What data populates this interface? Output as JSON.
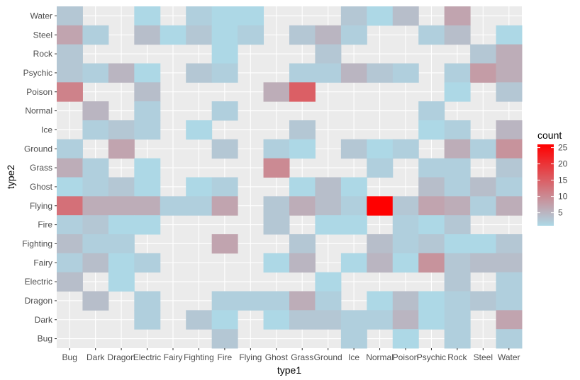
{
  "chart_data": {
    "type": "heatmap",
    "xlabel": "type1",
    "ylabel": "type2",
    "x_categories": [
      "Bug",
      "Dark",
      "Dragon",
      "Electric",
      "Fairy",
      "Fighting",
      "Fire",
      "Flying",
      "Ghost",
      "Grass",
      "Ground",
      "Ice",
      "Normal",
      "Poison",
      "Psychic",
      "Rock",
      "Steel",
      "Water"
    ],
    "y_categories": [
      "Bug",
      "Dark",
      "Dragon",
      "Electric",
      "Fairy",
      "Fighting",
      "Fire",
      "Flying",
      "Ghost",
      "Grass",
      "Ground",
      "Ice",
      "Normal",
      "Poison",
      "Psychic",
      "Rock",
      "Steel",
      "Water"
    ],
    "color_scale": {
      "low": "#add8e6",
      "high": "#ff0000",
      "min": 1,
      "max": 26
    },
    "legend": {
      "title": "count",
      "position": "right",
      "breaks": [
        5,
        10,
        15,
        20,
        25
      ]
    },
    "grid": true,
    "panel_background": "#ebebeb",
    "cells": [
      {
        "x": "Bug",
        "y": "Water",
        "count": 3
      },
      {
        "x": "Electric",
        "y": "Water",
        "count": 1
      },
      {
        "x": "Fighting",
        "y": "Water",
        "count": 2
      },
      {
        "x": "Fire",
        "y": "Water",
        "count": 1
      },
      {
        "x": "Flying",
        "y": "Water",
        "count": 1
      },
      {
        "x": "Ice",
        "y": "Water",
        "count": 3
      },
      {
        "x": "Normal",
        "y": "Water",
        "count": 1
      },
      {
        "x": "Poison",
        "y": "Water",
        "count": 4
      },
      {
        "x": "Rock",
        "y": "Water",
        "count": 7
      },
      {
        "x": "Bug",
        "y": "Steel",
        "count": 7
      },
      {
        "x": "Dark",
        "y": "Steel",
        "count": 2
      },
      {
        "x": "Electric",
        "y": "Steel",
        "count": 4
      },
      {
        "x": "Fairy",
        "y": "Steel",
        "count": 1
      },
      {
        "x": "Fighting",
        "y": "Steel",
        "count": 3
      },
      {
        "x": "Fire",
        "y": "Steel",
        "count": 1
      },
      {
        "x": "Flying",
        "y": "Steel",
        "count": 2
      },
      {
        "x": "Grass",
        "y": "Steel",
        "count": 3
      },
      {
        "x": "Ground",
        "y": "Steel",
        "count": 5
      },
      {
        "x": "Ice",
        "y": "Steel",
        "count": 2
      },
      {
        "x": "Psychic",
        "y": "Steel",
        "count": 2
      },
      {
        "x": "Rock",
        "y": "Steel",
        "count": 4
      },
      {
        "x": "Water",
        "y": "Steel",
        "count": 1
      },
      {
        "x": "Bug",
        "y": "Rock",
        "count": 3
      },
      {
        "x": "Fire",
        "y": "Rock",
        "count": 1
      },
      {
        "x": "Ground",
        "y": "Rock",
        "count": 3
      },
      {
        "x": "Steel",
        "y": "Rock",
        "count": 3
      },
      {
        "x": "Water",
        "y": "Rock",
        "count": 6
      },
      {
        "x": "Bug",
        "y": "Psychic",
        "count": 3
      },
      {
        "x": "Dark",
        "y": "Psychic",
        "count": 2
      },
      {
        "x": "Dragon",
        "y": "Psychic",
        "count": 5
      },
      {
        "x": "Electric",
        "y": "Psychic",
        "count": 1
      },
      {
        "x": "Fighting",
        "y": "Psychic",
        "count": 3
      },
      {
        "x": "Fire",
        "y": "Psychic",
        "count": 2
      },
      {
        "x": "Grass",
        "y": "Psychic",
        "count": 2
      },
      {
        "x": "Ground",
        "y": "Psychic",
        "count": 2
      },
      {
        "x": "Ice",
        "y": "Psychic",
        "count": 5
      },
      {
        "x": "Normal",
        "y": "Psychic",
        "count": 3
      },
      {
        "x": "Poison",
        "y": "Psychic",
        "count": 2
      },
      {
        "x": "Rock",
        "y": "Psychic",
        "count": 2
      },
      {
        "x": "Steel",
        "y": "Psychic",
        "count": 8
      },
      {
        "x": "Water",
        "y": "Psychic",
        "count": 6
      },
      {
        "x": "Bug",
        "y": "Poison",
        "count": 11
      },
      {
        "x": "Electric",
        "y": "Poison",
        "count": 4
      },
      {
        "x": "Ghost",
        "y": "Poison",
        "count": 6
      },
      {
        "x": "Grass",
        "y": "Poison",
        "count": 15
      },
      {
        "x": "Rock",
        "y": "Poison",
        "count": 1
      },
      {
        "x": "Water",
        "y": "Poison",
        "count": 3
      },
      {
        "x": "Dark",
        "y": "Normal",
        "count": 5
      },
      {
        "x": "Electric",
        "y": "Normal",
        "count": 2
      },
      {
        "x": "Fire",
        "y": "Normal",
        "count": 2
      },
      {
        "x": "Psychic",
        "y": "Normal",
        "count": 2
      },
      {
        "x": "Dark",
        "y": "Ice",
        "count": 2
      },
      {
        "x": "Dragon",
        "y": "Ice",
        "count": 3
      },
      {
        "x": "Electric",
        "y": "Ice",
        "count": 2
      },
      {
        "x": "Fighting",
        "y": "Ice",
        "count": 1
      },
      {
        "x": "Grass",
        "y": "Ice",
        "count": 3
      },
      {
        "x": "Psychic",
        "y": "Ice",
        "count": 1
      },
      {
        "x": "Rock",
        "y": "Ice",
        "count": 2
      },
      {
        "x": "Water",
        "y": "Ice",
        "count": 5
      },
      {
        "x": "Bug",
        "y": "Ground",
        "count": 2
      },
      {
        "x": "Dragon",
        "y": "Ground",
        "count": 7
      },
      {
        "x": "Fire",
        "y": "Ground",
        "count": 3
      },
      {
        "x": "Ghost",
        "y": "Ground",
        "count": 2
      },
      {
        "x": "Grass",
        "y": "Ground",
        "count": 1
      },
      {
        "x": "Ice",
        "y": "Ground",
        "count": 3
      },
      {
        "x": "Normal",
        "y": "Ground",
        "count": 1
      },
      {
        "x": "Poison",
        "y": "Ground",
        "count": 2
      },
      {
        "x": "Rock",
        "y": "Ground",
        "count": 6
      },
      {
        "x": "Steel",
        "y": "Ground",
        "count": 2
      },
      {
        "x": "Water",
        "y": "Ground",
        "count": 9
      },
      {
        "x": "Bug",
        "y": "Grass",
        "count": 6
      },
      {
        "x": "Dark",
        "y": "Grass",
        "count": 2
      },
      {
        "x": "Electric",
        "y": "Grass",
        "count": 1
      },
      {
        "x": "Ghost",
        "y": "Grass",
        "count": 10
      },
      {
        "x": "Normal",
        "y": "Grass",
        "count": 2
      },
      {
        "x": "Psychic",
        "y": "Grass",
        "count": 2
      },
      {
        "x": "Rock",
        "y": "Grass",
        "count": 2
      },
      {
        "x": "Water",
        "y": "Grass",
        "count": 3
      },
      {
        "x": "Bug",
        "y": "Ghost",
        "count": 1
      },
      {
        "x": "Dark",
        "y": "Ghost",
        "count": 2
      },
      {
        "x": "Dragon",
        "y": "Ghost",
        "count": 3
      },
      {
        "x": "Electric",
        "y": "Ghost",
        "count": 1
      },
      {
        "x": "Fighting",
        "y": "Ghost",
        "count": 1
      },
      {
        "x": "Fire",
        "y": "Ghost",
        "count": 2
      },
      {
        "x": "Grass",
        "y": "Ghost",
        "count": 1
      },
      {
        "x": "Ground",
        "y": "Ghost",
        "count": 4
      },
      {
        "x": "Ice",
        "y": "Ghost",
        "count": 1
      },
      {
        "x": "Psychic",
        "y": "Ghost",
        "count": 4
      },
      {
        "x": "Rock",
        "y": "Ghost",
        "count": 2
      },
      {
        "x": "Steel",
        "y": "Ghost",
        "count": 4
      },
      {
        "x": "Water",
        "y": "Ghost",
        "count": 2
      },
      {
        "x": "Bug",
        "y": "Flying",
        "count": 13
      },
      {
        "x": "Dark",
        "y": "Flying",
        "count": 6
      },
      {
        "x": "Dragon",
        "y": "Flying",
        "count": 6
      },
      {
        "x": "Electric",
        "y": "Flying",
        "count": 6
      },
      {
        "x": "Fairy",
        "y": "Flying",
        "count": 2
      },
      {
        "x": "Fighting",
        "y": "Flying",
        "count": 2
      },
      {
        "x": "Fire",
        "y": "Flying",
        "count": 7
      },
      {
        "x": "Ghost",
        "y": "Flying",
        "count": 3
      },
      {
        "x": "Grass",
        "y": "Flying",
        "count": 6
      },
      {
        "x": "Ground",
        "y": "Flying",
        "count": 4
      },
      {
        "x": "Ice",
        "y": "Flying",
        "count": 2
      },
      {
        "x": "Normal",
        "y": "Flying",
        "count": 26
      },
      {
        "x": "Poison",
        "y": "Flying",
        "count": 3
      },
      {
        "x": "Psychic",
        "y": "Flying",
        "count": 7
      },
      {
        "x": "Rock",
        "y": "Flying",
        "count": 6
      },
      {
        "x": "Steel",
        "y": "Flying",
        "count": 2
      },
      {
        "x": "Water",
        "y": "Flying",
        "count": 6
      },
      {
        "x": "Bug",
        "y": "Fire",
        "count": 2
      },
      {
        "x": "Dark",
        "y": "Fire",
        "count": 3
      },
      {
        "x": "Dragon",
        "y": "Fire",
        "count": 1
      },
      {
        "x": "Electric",
        "y": "Fire",
        "count": 1
      },
      {
        "x": "Ghost",
        "y": "Fire",
        "count": 3
      },
      {
        "x": "Ground",
        "y": "Fire",
        "count": 1
      },
      {
        "x": "Ice",
        "y": "Fire",
        "count": 1
      },
      {
        "x": "Poison",
        "y": "Fire",
        "count": 2
      },
      {
        "x": "Psychic",
        "y": "Fire",
        "count": 1
      },
      {
        "x": "Rock",
        "y": "Fire",
        "count": 3
      },
      {
        "x": "Bug",
        "y": "Fighting",
        "count": 4
      },
      {
        "x": "Dark",
        "y": "Fighting",
        "count": 2
      },
      {
        "x": "Dragon",
        "y": "Fighting",
        "count": 2
      },
      {
        "x": "Fire",
        "y": "Fighting",
        "count": 7
      },
      {
        "x": "Grass",
        "y": "Fighting",
        "count": 3
      },
      {
        "x": "Normal",
        "y": "Fighting",
        "count": 4
      },
      {
        "x": "Poison",
        "y": "Fighting",
        "count": 2
      },
      {
        "x": "Psychic",
        "y": "Fighting",
        "count": 3
      },
      {
        "x": "Rock",
        "y": "Fighting",
        "count": 1
      },
      {
        "x": "Steel",
        "y": "Fighting",
        "count": 1
      },
      {
        "x": "Water",
        "y": "Fighting",
        "count": 3
      },
      {
        "x": "Bug",
        "y": "Fairy",
        "count": 2
      },
      {
        "x": "Dark",
        "y": "Fairy",
        "count": 4
      },
      {
        "x": "Dragon",
        "y": "Fairy",
        "count": 1
      },
      {
        "x": "Electric",
        "y": "Fairy",
        "count": 2
      },
      {
        "x": "Ghost",
        "y": "Fairy",
        "count": 1
      },
      {
        "x": "Grass",
        "y": "Fairy",
        "count": 5
      },
      {
        "x": "Ice",
        "y": "Fairy",
        "count": 1
      },
      {
        "x": "Normal",
        "y": "Fairy",
        "count": 5
      },
      {
        "x": "Poison",
        "y": "Fairy",
        "count": 1
      },
      {
        "x": "Psychic",
        "y": "Fairy",
        "count": 9
      },
      {
        "x": "Rock",
        "y": "Fairy",
        "count": 3
      },
      {
        "x": "Steel",
        "y": "Fairy",
        "count": 4
      },
      {
        "x": "Water",
        "y": "Fairy",
        "count": 4
      },
      {
        "x": "Bug",
        "y": "Electric",
        "count": 4
      },
      {
        "x": "Dragon",
        "y": "Electric",
        "count": 1
      },
      {
        "x": "Ground",
        "y": "Electric",
        "count": 1
      },
      {
        "x": "Rock",
        "y": "Electric",
        "count": 3
      },
      {
        "x": "Water",
        "y": "Electric",
        "count": 2
      },
      {
        "x": "Dark",
        "y": "Dragon",
        "count": 4
      },
      {
        "x": "Electric",
        "y": "Dragon",
        "count": 2
      },
      {
        "x": "Fire",
        "y": "Dragon",
        "count": 2
      },
      {
        "x": "Flying",
        "y": "Dragon",
        "count": 2
      },
      {
        "x": "Ghost",
        "y": "Dragon",
        "count": 2
      },
      {
        "x": "Grass",
        "y": "Dragon",
        "count": 6
      },
      {
        "x": "Ground",
        "y": "Dragon",
        "count": 2
      },
      {
        "x": "Normal",
        "y": "Dragon",
        "count": 1
      },
      {
        "x": "Poison",
        "y": "Dragon",
        "count": 4
      },
      {
        "x": "Psychic",
        "y": "Dragon",
        "count": 1
      },
      {
        "x": "Rock",
        "y": "Dragon",
        "count": 2
      },
      {
        "x": "Steel",
        "y": "Dragon",
        "count": 3
      },
      {
        "x": "Water",
        "y": "Dragon",
        "count": 2
      },
      {
        "x": "Electric",
        "y": "Dark",
        "count": 2
      },
      {
        "x": "Fighting",
        "y": "Dark",
        "count": 3
      },
      {
        "x": "Fire",
        "y": "Dark",
        "count": 1
      },
      {
        "x": "Ghost",
        "y": "Dark",
        "count": 1
      },
      {
        "x": "Grass",
        "y": "Dark",
        "count": 3
      },
      {
        "x": "Ground",
        "y": "Dark",
        "count": 3
      },
      {
        "x": "Ice",
        "y": "Dark",
        "count": 2
      },
      {
        "x": "Normal",
        "y": "Dark",
        "count": 2
      },
      {
        "x": "Poison",
        "y": "Dark",
        "count": 5
      },
      {
        "x": "Psychic",
        "y": "Dark",
        "count": 1
      },
      {
        "x": "Rock",
        "y": "Dark",
        "count": 2
      },
      {
        "x": "Water",
        "y": "Dark",
        "count": 7
      },
      {
        "x": "Fire",
        "y": "Bug",
        "count": 3
      },
      {
        "x": "Ice",
        "y": "Bug",
        "count": 2
      },
      {
        "x": "Poison",
        "y": "Bug",
        "count": 1
      },
      {
        "x": "Rock",
        "y": "Bug",
        "count": 2
      },
      {
        "x": "Water",
        "y": "Bug",
        "count": 2
      }
    ]
  }
}
